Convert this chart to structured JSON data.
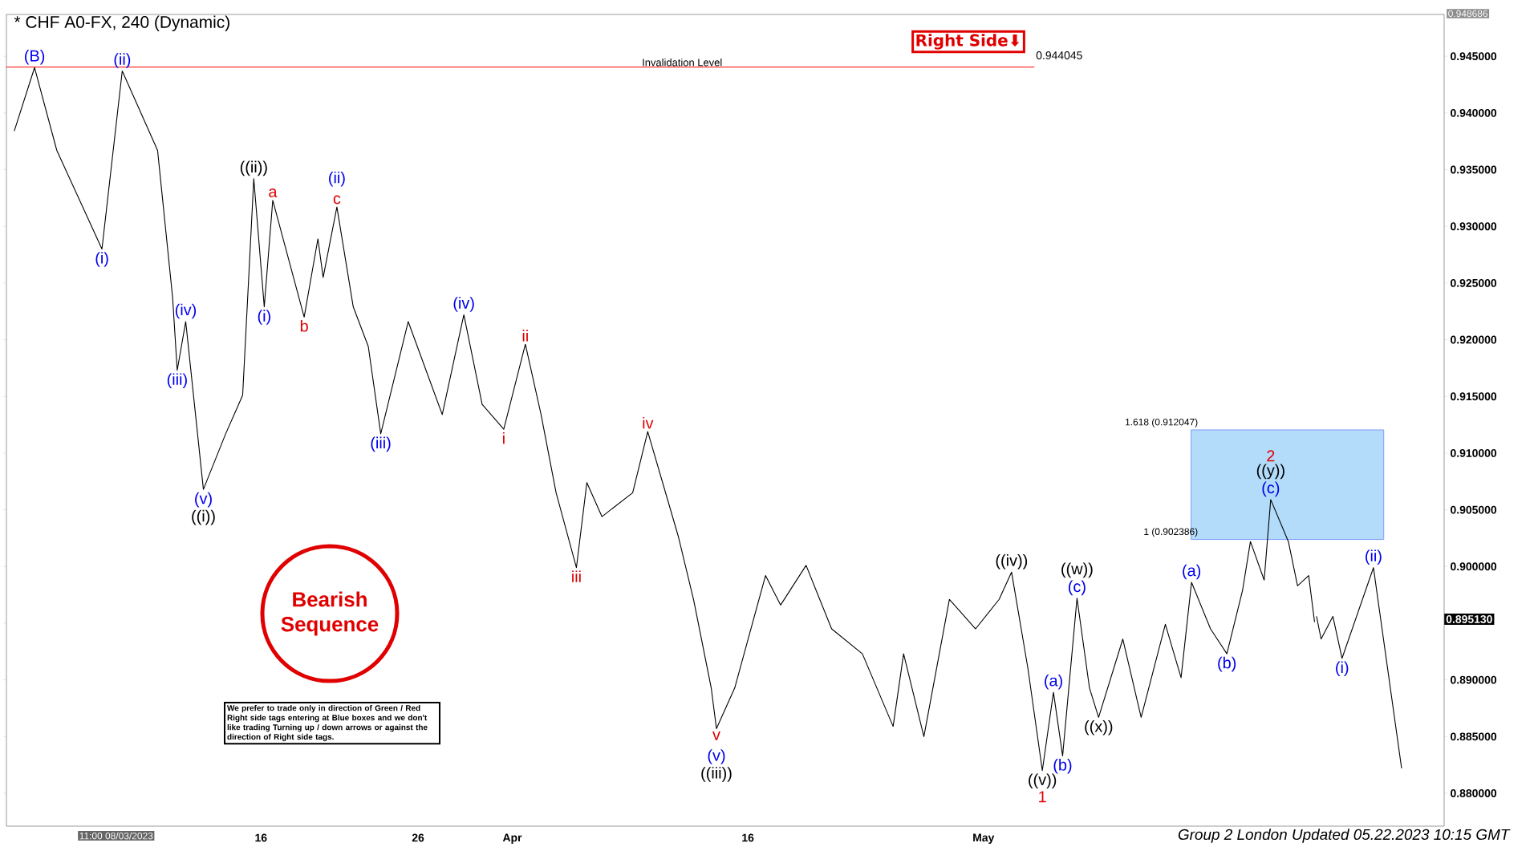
{
  "chart_data": {
    "type": "line",
    "title": "* CHF A0-FX, 240 (Dynamic)",
    "xlim": [
      "2023-02-27T19:00",
      "2023-05-30T08:00"
    ],
    "ylim": [
      0.8771,
      0.948686
    ],
    "xticks": [
      {
        "value": "2023-03-16",
        "label": "16"
      },
      {
        "value": "2023-03-26",
        "label": "26"
      },
      {
        "value": "2023-04-01",
        "label": "Apr"
      },
      {
        "value": "2023-04-16",
        "label": "16"
      },
      {
        "value": "2023-05-01",
        "label": "May"
      }
    ],
    "yticks": [
      {
        "value": 0.88,
        "label": "0.880000"
      },
      {
        "value": 0.885,
        "label": "0.885000"
      },
      {
        "value": 0.89,
        "label": "0.890000"
      },
      {
        "value": 0.895,
        "label": null
      },
      {
        "value": 0.9,
        "label": "0.900000"
      },
      {
        "value": 0.905,
        "label": "0.905000"
      },
      {
        "value": 0.91,
        "label": "0.910000"
      },
      {
        "value": 0.915,
        "label": "0.915000"
      },
      {
        "value": 0.92,
        "label": "0.920000"
      },
      {
        "value": 0.925,
        "label": "0.925000"
      },
      {
        "value": 0.93,
        "label": "0.930000"
      },
      {
        "value": 0.935,
        "label": "0.935000"
      },
      {
        "value": 0.94,
        "label": "0.940000"
      },
      {
        "value": 0.945,
        "label": "0.945000"
      }
    ],
    "series": [
      {
        "color": "#000000",
        "x": [
          "2023-02-28T07:00",
          "2023-03-01T14:00",
          "2023-03-03T00:00",
          "2023-03-05T21:00",
          "2023-03-07T04:00",
          "2023-03-09T10:00",
          "2023-03-10T09:00",
          "2023-03-10T16:00",
          "2023-03-11T05:00",
          "2023-03-12T08:00",
          "2023-03-13T18:00",
          "2023-03-14T20:00",
          "2023-03-15T13:00",
          "2023-03-16T05:00",
          "2023-03-16T18:00",
          "2023-03-18T18:00",
          "2023-03-19T15:00",
          "2023-03-19T23:00",
          "2023-03-20T20:00",
          "2023-03-21T21:00",
          "2023-03-22T20:00",
          "2023-03-23T15:00",
          "2023-03-25T09:00",
          "2023-03-27T13:00",
          "2023-03-28T22:00",
          "2023-03-30T02:00",
          "2023-03-31T11:00",
          "2023-04-01T20:00",
          "2023-04-02T20:00",
          "2023-04-03T19:00",
          "2023-04-05T02:00",
          "2023-04-05T18:00",
          "2023-04-06T17:00",
          "2023-04-08T16:00",
          "2023-04-09T15:00",
          "2023-04-11T14:00",
          "2023-04-12T13:00",
          "2023-04-13T16:00",
          "2023-04-14T00:00",
          "2023-04-15T04:00",
          "2023-04-17T03:00",
          "2023-04-18T02:00",
          "2023-04-19T17:00",
          "2023-04-21T08:00",
          "2023-04-23T07:00",
          "2023-04-25T06:00",
          "2023-04-25T22:00",
          "2023-04-27T05:00",
          "2023-04-28T20:00",
          "2023-04-30T12:00",
          "2023-05-02T00:00",
          "2023-05-02T19:00",
          "2023-05-03T20:00",
          "2023-05-04T18:00",
          "2023-05-05T11:00",
          "2023-05-06T01:00",
          "2023-05-06T23:00",
          "2023-05-07T18:00",
          "2023-05-08T08:00",
          "2023-05-09T21:00",
          "2023-05-11T01:00",
          "2023-05-12T14:00",
          "2023-05-13T14:00",
          "2023-05-14T06:00",
          "2023-05-15T11:00",
          "2023-05-16T12:00",
          "2023-05-17T12:00",
          "2023-05-18T00:00",
          "2023-05-18T21:00",
          "2023-05-19T07:00",
          "2023-05-20T10:00",
          "2023-05-21T00:00",
          "2023-05-21T17:00",
          "2023-05-22T02:00"
        ],
        "values": [
          0.9384,
          0.944,
          0.9367,
          0.928,
          0.9437,
          0.9367,
          0.9237,
          0.9173,
          0.9216,
          0.9068,
          0.9117,
          0.9151,
          0.9342,
          0.9229,
          0.9323,
          0.922,
          0.9289,
          0.9255,
          0.9317,
          0.9229,
          0.9194,
          0.9117,
          0.9216,
          0.9134,
          0.9222,
          0.9143,
          0.9121,
          0.9196,
          0.9134,
          0.9065,
          0.8999,
          0.9074,
          0.9044,
          0.9065,
          0.9119,
          0.9026,
          0.8971,
          0.8893,
          0.8857,
          0.8893,
          0.8992,
          0.8966,
          0.9001,
          0.8945,
          0.8923,
          0.8859,
          0.8923,
          0.885,
          0.8971,
          0.8945,
          0.8971,
          0.8995,
          0.891,
          0.882,
          0.8889,
          0.8833,
          0.8972,
          0.8893,
          0.8867,
          0.8936,
          0.8867,
          0.8949,
          0.8902,
          0.8986,
          0.8945,
          0.8923,
          0.8979,
          0.9022,
          0.8988,
          0.9059,
          0.9022,
          0.8983,
          0.8992,
          0.8951
        ]
      },
      {
        "color": "#000000",
        "x": [
          "2023-05-22T05:00",
          "2023-05-22T12:00",
          "2023-05-23T06:00",
          "2023-05-23T20:00",
          "2023-05-25T20:00",
          "2023-05-27T15:00"
        ],
        "values": [
          0.8956,
          0.8936,
          0.8956,
          0.8919,
          0.8999,
          0.8822
        ]
      }
    ],
    "ref_lines": [
      {
        "axis": "y",
        "value": 0.944045,
        "label": "Invalidation Level",
        "color": "#ff0000"
      }
    ],
    "bands": [
      {
        "axis": "y",
        "from": 0.902386,
        "to": 0.912047,
        "color": "#b3dcfb"
      }
    ],
    "annotations": [
      {
        "text": "(B)",
        "x": "2023-03-01T14:00",
        "y": 0.944
      },
      {
        "text": "(ii)",
        "x": "2023-03-07T04:00",
        "y": 0.9437
      },
      {
        "text": "(i)",
        "x": "2023-03-05T21:00",
        "y": 0.928
      },
      {
        "text": "(iii)",
        "x": "2023-03-10T16:00",
        "y": 0.9173
      },
      {
        "text": "(iv)",
        "x": "2023-03-11T05:00",
        "y": 0.9216
      },
      {
        "text": "(v)",
        "x": "2023-03-12T08:00",
        "y": 0.9068
      },
      {
        "text": "((i))",
        "x": "2023-03-12T08:00",
        "y": 0.9068
      },
      {
        "text": "((ii))",
        "x": "2023-03-15T13:00",
        "y": 0.9342
      },
      {
        "text": "(i)",
        "x": "2023-03-16T05:00",
        "y": 0.9229
      },
      {
        "text": "a",
        "x": "2023-03-16T18:00",
        "y": 0.9323
      },
      {
        "text": "b",
        "x": "2023-03-18T18:00",
        "y": 0.922
      },
      {
        "text": "c",
        "x": "2023-03-20T20:00",
        "y": 0.9317
      },
      {
        "text": "(ii)",
        "x": "2023-03-20T20:00",
        "y": 0.9317
      },
      {
        "text": "(iii)",
        "x": "2023-03-23T15:00",
        "y": 0.9117
      },
      {
        "text": "(iv)",
        "x": "2023-03-28T22:00",
        "y": 0.9222
      },
      {
        "text": "i",
        "x": "2023-03-31T11:00",
        "y": 0.9121
      },
      {
        "text": "ii",
        "x": "2023-04-01T20:00",
        "y": 0.9196
      },
      {
        "text": "iii",
        "x": "2023-04-05T02:00",
        "y": 0.8999
      },
      {
        "text": "iv",
        "x": "2023-04-09T15:00",
        "y": 0.9119
      },
      {
        "text": "v",
        "x": "2023-04-14T00:00",
        "y": 0.8857
      },
      {
        "text": "(v)",
        "x": "2023-04-14T00:00",
        "y": 0.8857
      },
      {
        "text": "((iii))",
        "x": "2023-04-14T00:00",
        "y": 0.8857
      },
      {
        "text": "((iv))",
        "x": "2023-05-02T19:00",
        "y": 0.8995
      },
      {
        "text": "((v))",
        "x": "2023-05-04T18:00",
        "y": 0.882
      },
      {
        "text": "1",
        "x": "2023-05-04T18:00",
        "y": 0.882
      },
      {
        "text": "(a)",
        "x": "2023-05-05T11:00",
        "y": 0.8889
      },
      {
        "text": "(b)",
        "x": "2023-05-06T01:00",
        "y": 0.8833
      },
      {
        "text": "(c)",
        "x": "2023-05-06T23:00",
        "y": 0.8972
      },
      {
        "text": "((w))",
        "x": "2023-05-06T23:00",
        "y": 0.8972
      },
      {
        "text": "((x))",
        "x": "2023-05-08T08:00",
        "y": 0.8867
      },
      {
        "text": "(a)",
        "x": "2023-05-14T06:00",
        "y": 0.8986
      },
      {
        "text": "(b)",
        "x": "2023-05-16T12:00",
        "y": 0.8923
      },
      {
        "text": "(c)",
        "x": "2023-05-19T07:00",
        "y": 0.9059
      },
      {
        "text": "((y))",
        "x": "2023-05-19T07:00",
        "y": 0.9059
      },
      {
        "text": "2",
        "x": "2023-05-19T07:00",
        "y": 0.9059
      },
      {
        "text": "(i)",
        "x": "2023-05-23T20:00",
        "y": 0.8919
      },
      {
        "text": "(ii)",
        "x": "2023-05-25T20:00",
        "y": 0.8999
      },
      {
        "text": "1.618 (0.912047)",
        "x": "2023-05-14T21:00",
        "y": 0.912047
      },
      {
        "text": "1 (0.902386)",
        "x": "2023-05-14T21:00",
        "y": 0.902386
      },
      "0.944045",
      "0.895130",
      "0.948686",
      "Right Side⬇",
      "Bearish Sequence",
      "We prefer to trade only in direction of Green / Red Right side tags entering at Blue boxes and we don't like trading Turning up / down arrows or against the direction of Right side tags.",
      "11:00 08/03/2023",
      "Group 2 London Updated 05.22.2023 10:15 GMT"
    ]
  }
}
